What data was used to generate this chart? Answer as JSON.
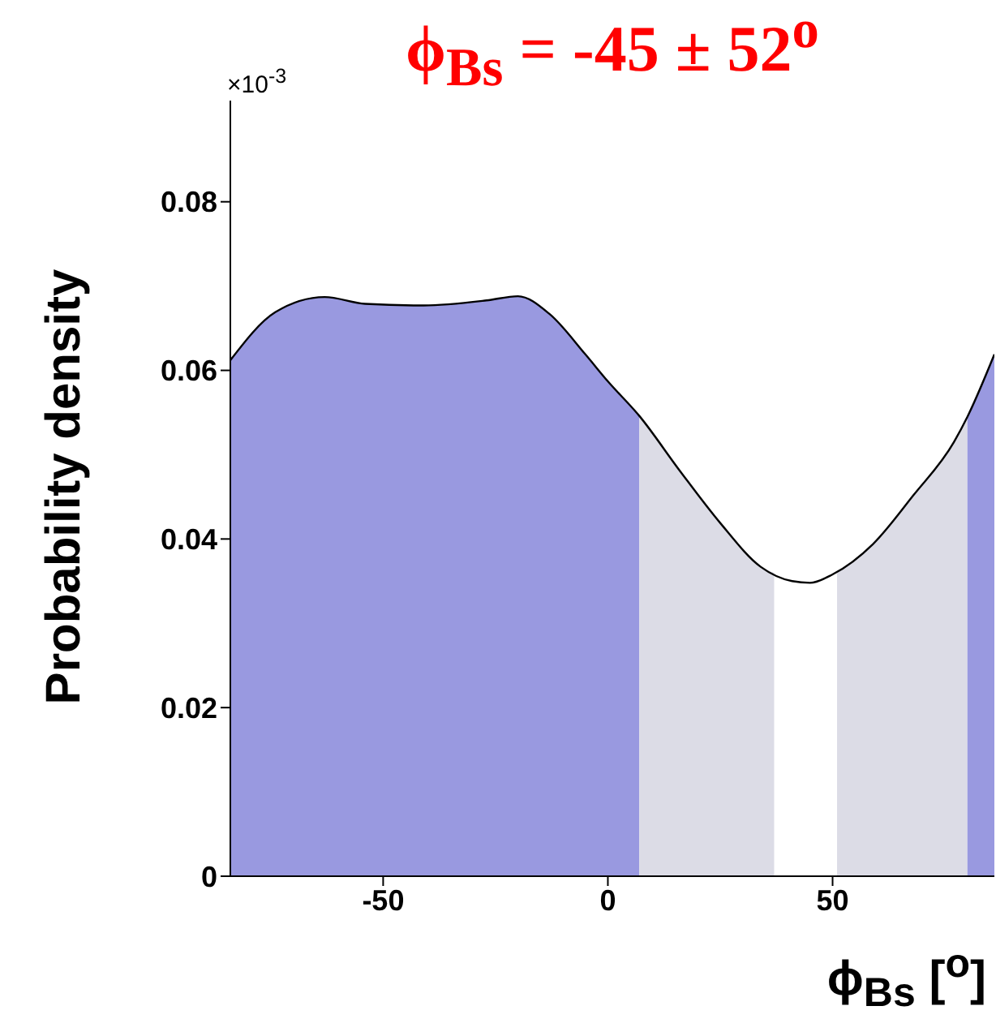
{
  "chart_data": {
    "type": "area",
    "title": "ϕ$_{Bs}$ = -45 ± 52$^{o}$",
    "xlabel": "ϕ$_{Bs}$ [$^{o}$]",
    "ylabel": "Probability density",
    "annotations": [
      "×10$^{-3}$"
    ],
    "xlim": [
      -84,
      86
    ],
    "xticks": [
      -50,
      0,
      50
    ],
    "ylim": [
      0,
      0.092
    ],
    "yticks": [
      0,
      0.02,
      0.04,
      0.06,
      0.08
    ],
    "series": [
      {
        "color": "#9999e0",
        "x": [
          -84,
          -74,
          -63,
          -54,
          -41,
          -27,
          -20,
          -13,
          -5,
          0,
          7
        ],
        "values": [
          0.0612,
          0.0669,
          0.0687,
          0.0679,
          0.0677,
          0.0683,
          0.0688,
          0.0667,
          0.0619,
          0.0587,
          0.0546
        ]
      },
      {
        "color": "#dcdce6",
        "x": [
          7,
          16,
          25,
          34,
          37
        ],
        "values": [
          0.0546,
          0.0481,
          0.0419,
          0.0367,
          0.036
        ]
      },
      {
        "color": "#dcdce6",
        "x": [
          51,
          59,
          68,
          77,
          80
        ],
        "values": [
          0.036,
          0.0394,
          0.0452,
          0.0515,
          0.0545
        ]
      },
      {
        "color": "#9999e0",
        "x": [
          80,
          86
        ],
        "values": [
          0.0545,
          0.0619
        ]
      },
      {
        "type": "line",
        "color": "#000000",
        "x": [
          -84,
          -74,
          -63,
          -54,
          -41,
          -27,
          -20,
          -13,
          -5,
          0,
          7,
          16,
          25,
          34,
          41,
          45,
          50,
          59,
          68,
          77,
          80,
          86
        ],
        "values": [
          0.0612,
          0.0669,
          0.0687,
          0.0679,
          0.0677,
          0.0683,
          0.0688,
          0.0667,
          0.0619,
          0.0587,
          0.0546,
          0.0481,
          0.0419,
          0.0367,
          0.035,
          0.0348,
          0.0358,
          0.0394,
          0.0452,
          0.0515,
          0.0545,
          0.0619
        ]
      }
    ]
  }
}
